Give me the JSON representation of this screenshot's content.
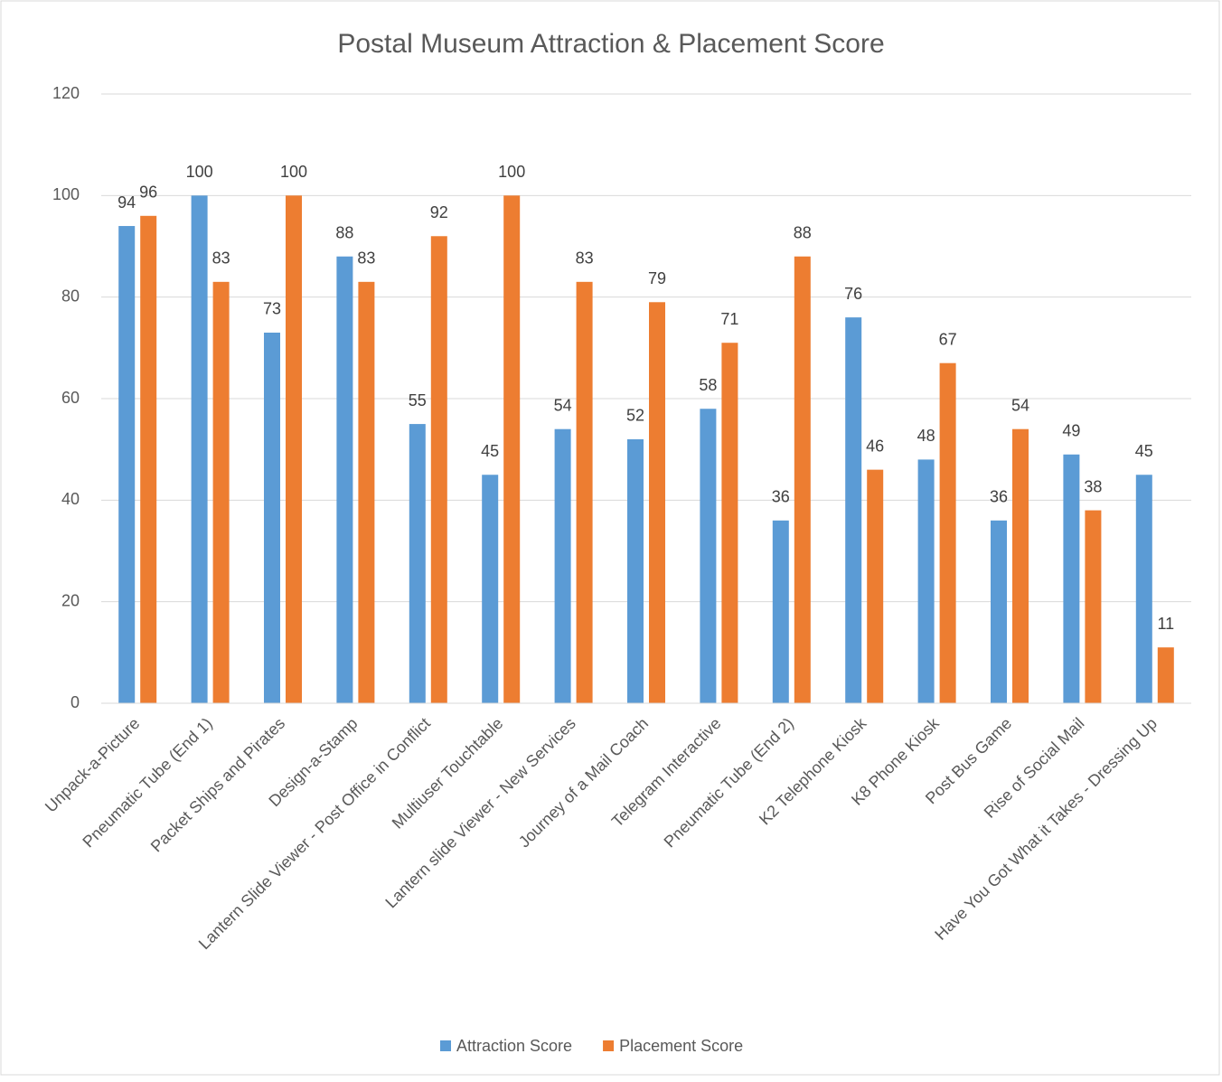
{
  "chart_data": {
    "type": "bar",
    "title": "Postal Museum Attraction & Placement Score",
    "categories": [
      "Unpack-a-Picture",
      "Pneumatic Tube (End 1)",
      "Packet Ships and Pirates",
      "Design-a-Stamp",
      "Lantern Slide Viewer - Post Office in Conflict",
      "Multiuser Touchtable",
      "Lantern slide Viewer - New Services",
      "Journey of a Mail Coach",
      "Telegram Interactive",
      "Pneumatic Tube (End 2)",
      "K2 Telephone Kiosk",
      "K8 Phone Kiosk",
      "Post Bus Game",
      "Rise of Social Mail",
      "Have You Got What it Takes - Dressing Up"
    ],
    "series": [
      {
        "name": "Attraction Score",
        "color": "#5b9bd5",
        "values": [
          94,
          100,
          73,
          88,
          55,
          45,
          54,
          52,
          58,
          36,
          76,
          48,
          36,
          49,
          45
        ]
      },
      {
        "name": "Placement Score",
        "color": "#ed7d31",
        "values": [
          96,
          83,
          100,
          83,
          92,
          100,
          83,
          79,
          71,
          88,
          46,
          67,
          54,
          38,
          11
        ]
      }
    ],
    "ylim": [
      0,
      120
    ],
    "yticks": [
      0,
      20,
      40,
      60,
      80,
      100,
      120
    ],
    "grid": true,
    "legend": "bottom"
  }
}
